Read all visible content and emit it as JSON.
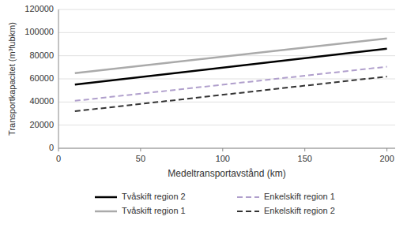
{
  "chart_data": {
    "type": "line",
    "x": [
      10,
      200
    ],
    "xlabel": "Medeltransportavstånd (km)",
    "ylabel": "Transportkapacitet (m³fubkm)",
    "xlim": [
      0,
      205
    ],
    "ylim": [
      0,
      120000
    ],
    "xticks": [
      0,
      50,
      100,
      150,
      200
    ],
    "yticks": [
      0,
      20000,
      40000,
      60000,
      80000,
      100000,
      120000
    ],
    "grid": true,
    "legend": "bottom",
    "series": [
      {
        "name": "Tvåskift region 2",
        "color": "#000000",
        "line_style": "solid",
        "values": [
          55000,
          86000
        ]
      },
      {
        "name": "Tvåskift region 1",
        "color": "#aaaaaa",
        "line_style": "solid",
        "values": [
          65000,
          95000
        ]
      },
      {
        "name": "Enkelskift region 1",
        "color": "#b09fcc",
        "line_style": "dashed",
        "values": [
          41000,
          70500
        ]
      },
      {
        "name": "Enkelskift region 2",
        "color": "#333333",
        "line_style": "dashed",
        "values": [
          32000,
          62000
        ]
      }
    ]
  }
}
